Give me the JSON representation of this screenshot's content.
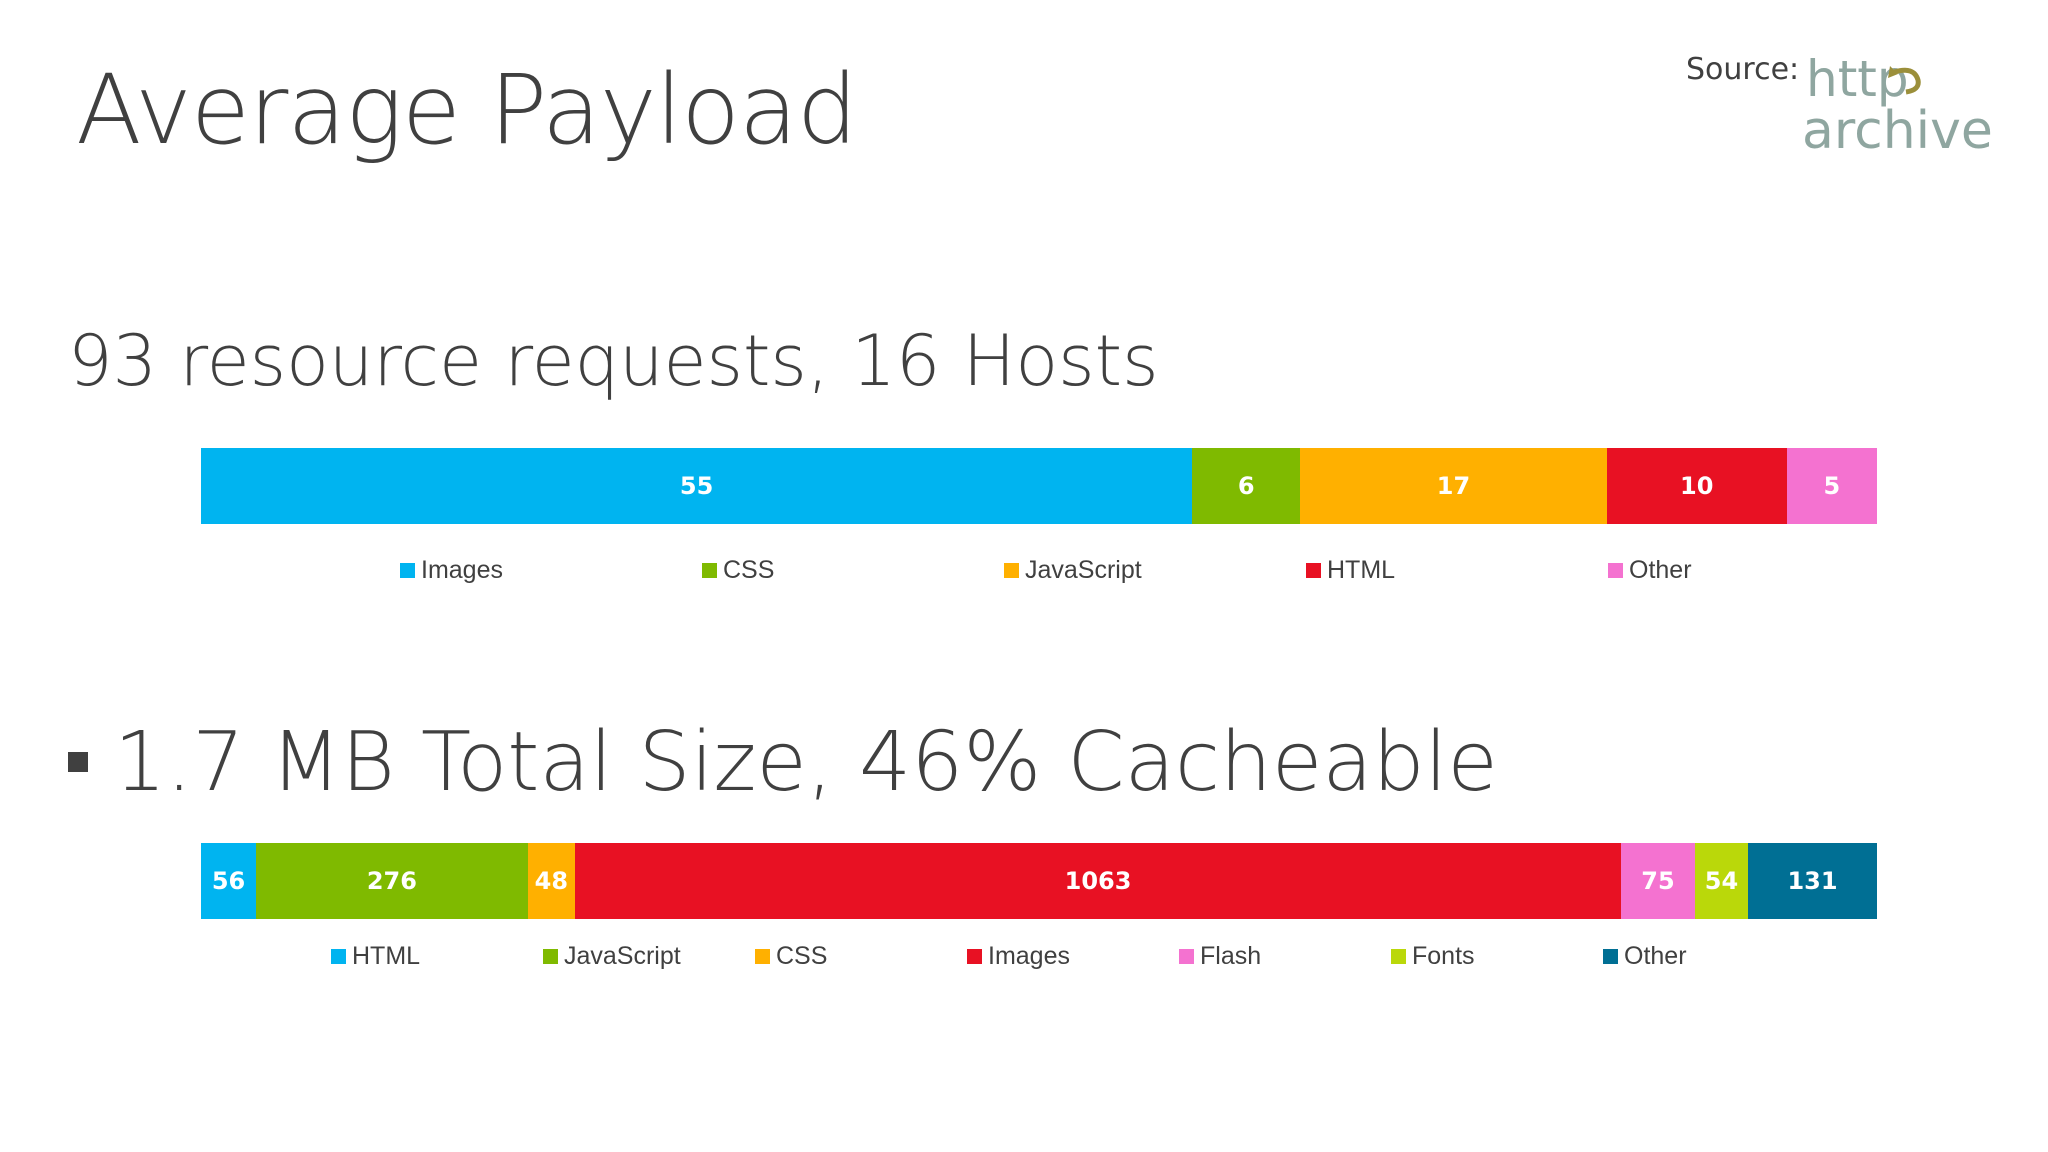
{
  "slide": {
    "title": "Average Payload",
    "source_label": "Source:",
    "logo_text_top": "http",
    "logo_text_bottom": "archive"
  },
  "chart_data": [
    {
      "type": "bar",
      "orientation": "horizontal-stacked",
      "title": "93 resource requests, 16 Hosts",
      "series": [
        {
          "name": "Images",
          "value": 55,
          "color": "#00b4f0"
        },
        {
          "name": "CSS",
          "value": 6,
          "color": "#7fba00"
        },
        {
          "name": "JavaScript",
          "value": 17,
          "color": "#ffb000"
        },
        {
          "name": "HTML",
          "value": 10,
          "color": "#e81123"
        },
        {
          "name": "Other",
          "value": 5,
          "color": "#f472d0"
        }
      ],
      "legend_position": "bottom"
    },
    {
      "type": "bar",
      "orientation": "horizontal-stacked",
      "title": "1.7 MB Total Size, 46% Cacheable",
      "series": [
        {
          "name": "HTML",
          "value": 56,
          "color": "#00b4f0"
        },
        {
          "name": "JavaScript",
          "value": 276,
          "color": "#7fba00"
        },
        {
          "name": "CSS",
          "value": 48,
          "color": "#ffb000"
        },
        {
          "name": "Images",
          "value": 1063,
          "color": "#e81123"
        },
        {
          "name": "Flash",
          "value": 75,
          "color": "#f472d0"
        },
        {
          "name": "Fonts",
          "value": 54,
          "color": "#bad80a"
        },
        {
          "name": "Other",
          "value": 131,
          "color": "#006f94"
        }
      ],
      "legend_position": "bottom"
    }
  ]
}
